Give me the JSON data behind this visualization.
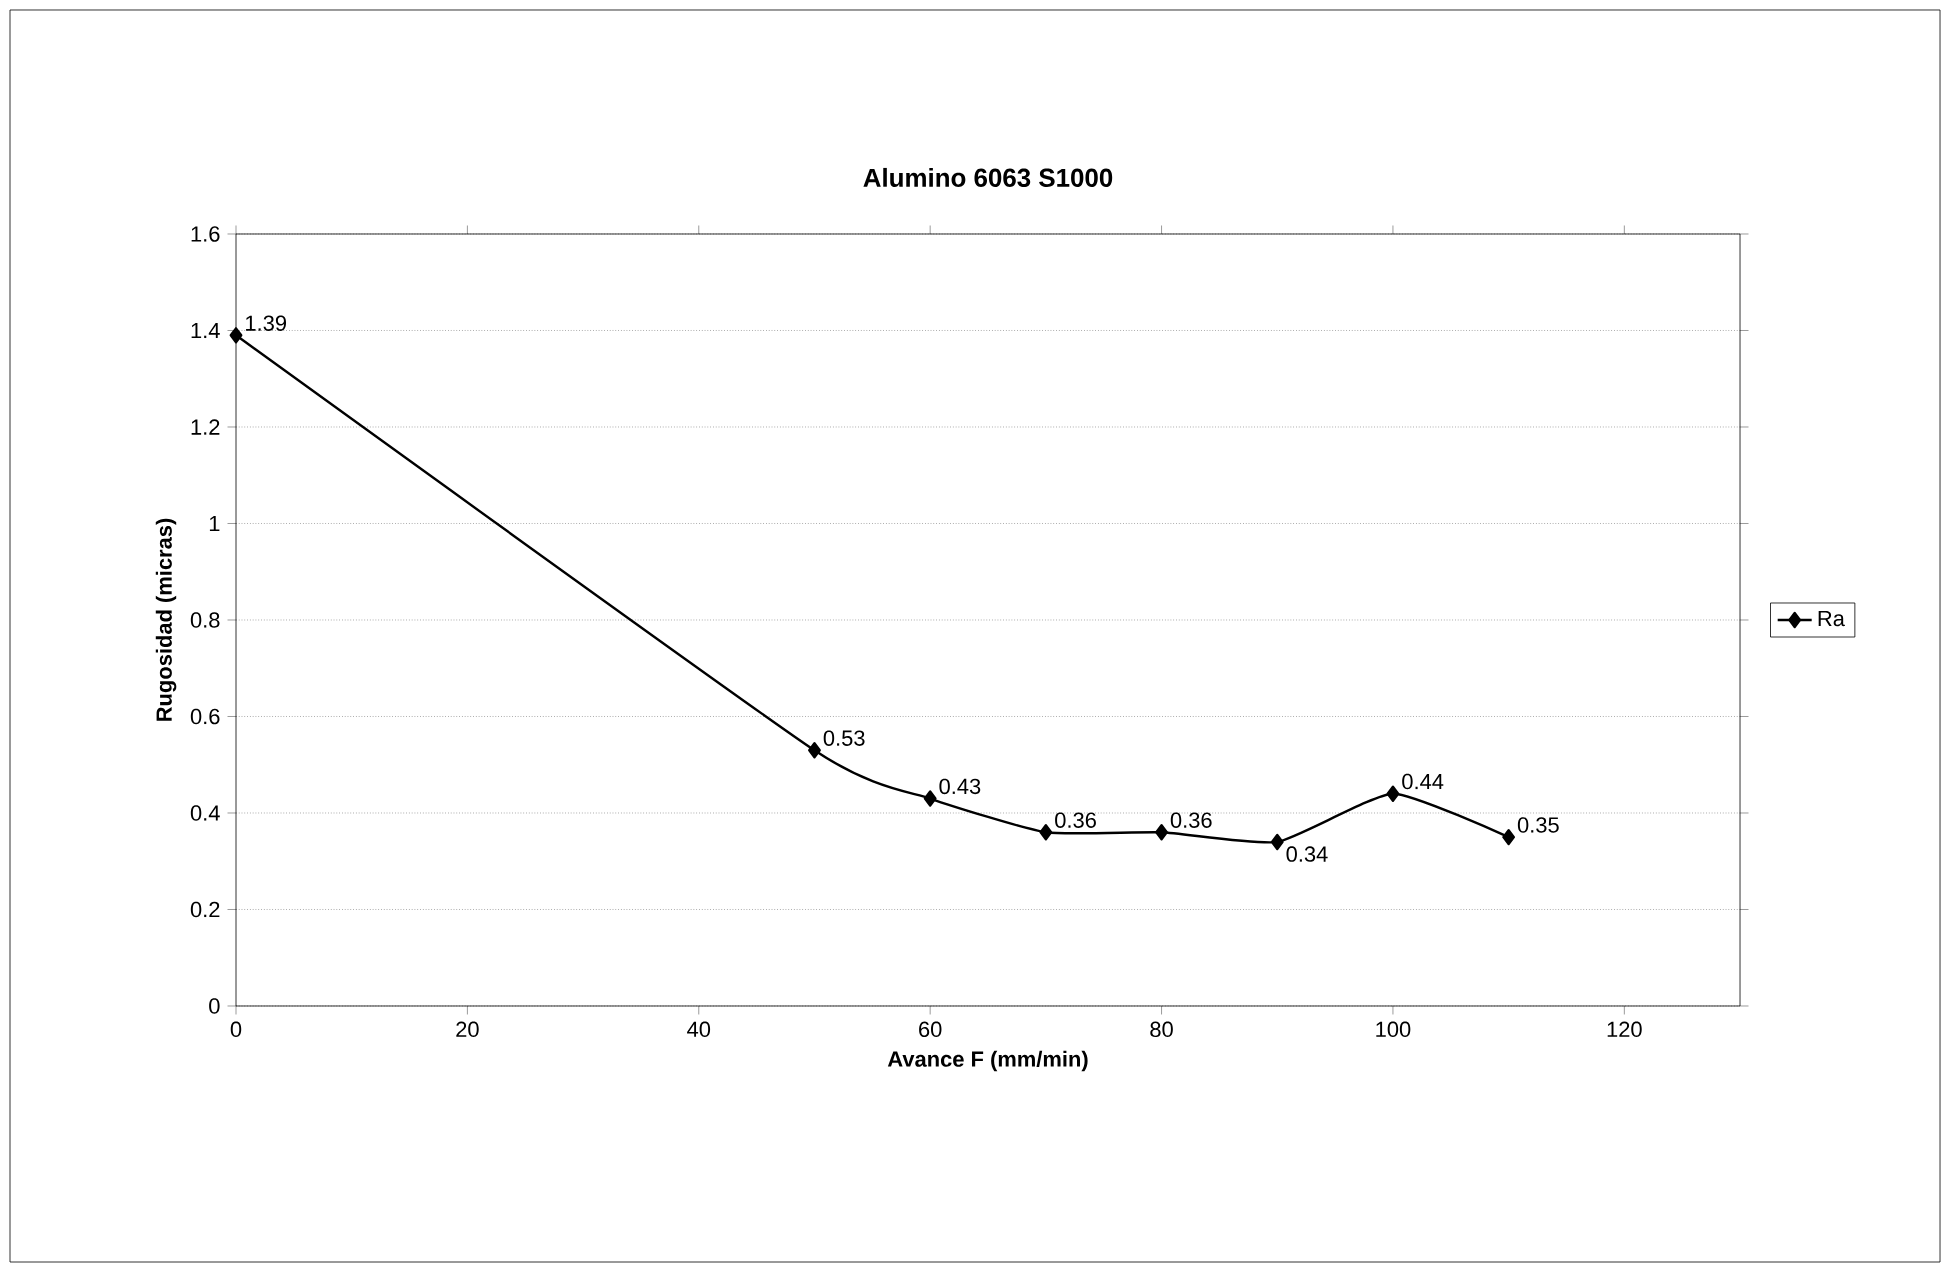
{
  "chart_data": {
    "type": "line",
    "title": "Alumino 6063 S1000",
    "xlabel": "Avance F (mm/min)",
    "ylabel": "Rugosidad (micras)",
    "x": [
      0,
      50,
      60,
      70,
      80,
      90,
      100,
      110
    ],
    "series": [
      {
        "name": "Ra",
        "color": "#000000",
        "values": [
          1.39,
          0.53,
          0.43,
          0.36,
          0.36,
          0.34,
          0.44,
          0.35
        ]
      }
    ],
    "xlim": [
      0,
      130
    ],
    "ylim": [
      0,
      1.6
    ],
    "xticks": [
      0,
      20,
      40,
      60,
      80,
      100,
      120
    ],
    "yticks": [
      0,
      0.2,
      0.4,
      0.6,
      0.8,
      1,
      1.2,
      1.4,
      1.6
    ],
    "grid": "y",
    "legend": "right",
    "marker": "diamond",
    "line_style": "solid",
    "data_labels": true
  }
}
